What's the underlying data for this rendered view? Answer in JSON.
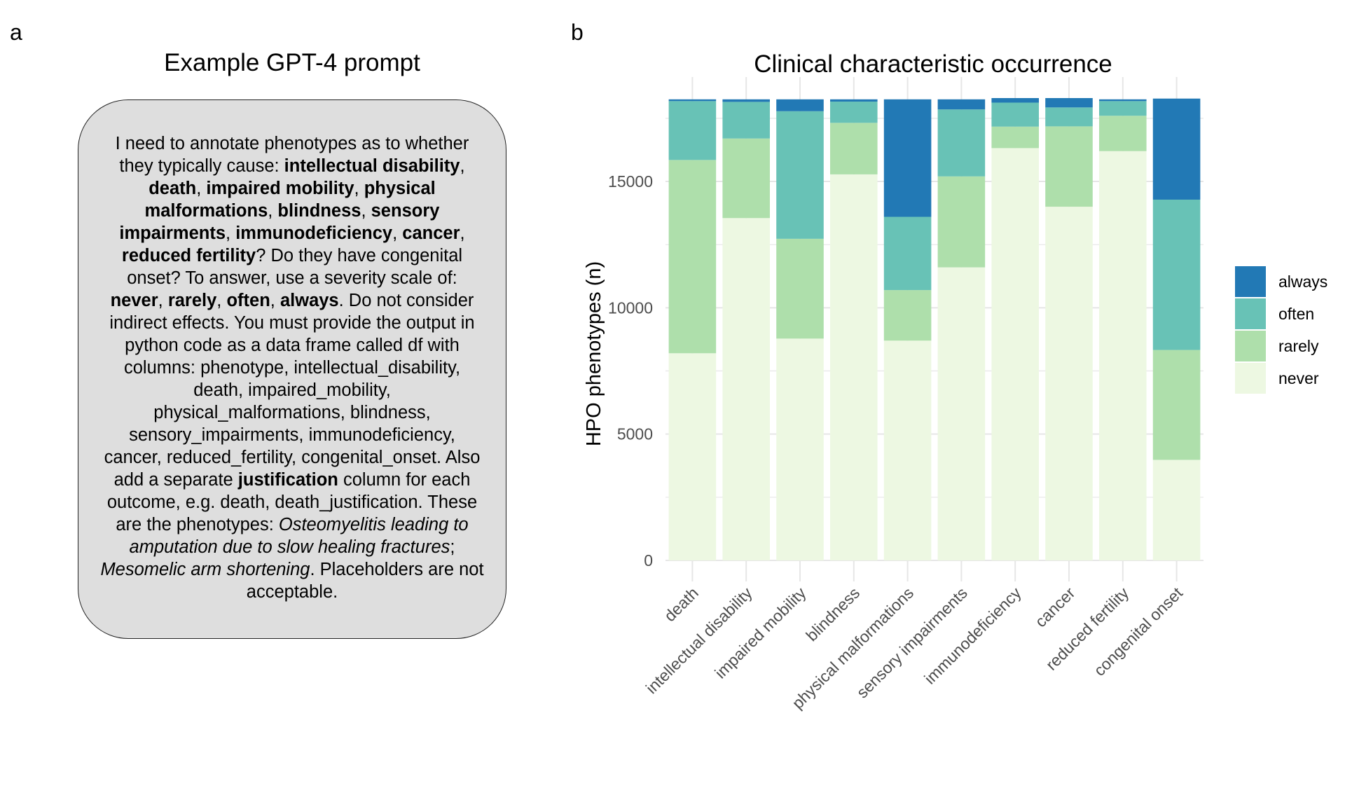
{
  "panel_a": {
    "letter": "a",
    "title": "Example GPT-4 prompt",
    "prompt_segments": [
      {
        "t": "I need to annotate phenotypes as to whether they typically cause: ",
        "s": ""
      },
      {
        "t": "intellectual disability",
        "s": "b"
      },
      {
        "t": ", ",
        "s": ""
      },
      {
        "t": "death",
        "s": "b"
      },
      {
        "t": ", ",
        "s": ""
      },
      {
        "t": "impaired mobility",
        "s": "b"
      },
      {
        "t": ", ",
        "s": ""
      },
      {
        "t": "physical malformations",
        "s": "b"
      },
      {
        "t": ", ",
        "s": ""
      },
      {
        "t": "blindness",
        "s": "b"
      },
      {
        "t": ", ",
        "s": ""
      },
      {
        "t": "sensory impairments",
        "s": "b"
      },
      {
        "t": ", ",
        "s": ""
      },
      {
        "t": "immunodeficiency",
        "s": "b"
      },
      {
        "t": ", ",
        "s": ""
      },
      {
        "t": "cancer",
        "s": "b"
      },
      {
        "t": ", ",
        "s": ""
      },
      {
        "t": "reduced fertility",
        "s": "b"
      },
      {
        "t": "? Do they have congenital onset? To answer, use a severity scale of: ",
        "s": ""
      },
      {
        "t": "never",
        "s": "b"
      },
      {
        "t": ", ",
        "s": ""
      },
      {
        "t": "rarely",
        "s": "b"
      },
      {
        "t": ", ",
        "s": ""
      },
      {
        "t": "often",
        "s": "b"
      },
      {
        "t": ", ",
        "s": ""
      },
      {
        "t": "always",
        "s": "b"
      },
      {
        "t": ". Do not consider indirect effects. You must provide the output in python code as a data frame called df with columns: phenotype, intellectual_disability, death, impaired_mobility, physical_malformations, blindness, sensory_impairments, immunodeficiency, cancer, reduced_fertility, congenital_onset. Also add a separate ",
        "s": ""
      },
      {
        "t": "justification",
        "s": "b"
      },
      {
        "t": " column for each outcome, e.g. death, death_justification. These are the phenotypes: ",
        "s": ""
      },
      {
        "t": "Osteomyelitis leading to amputation due to slow healing fractures",
        "s": "i"
      },
      {
        "t": "; ",
        "s": ""
      },
      {
        "t": "Mesomelic arm shortening",
        "s": "i"
      },
      {
        "t": ". Placeholders are not acceptable.",
        "s": ""
      }
    ]
  },
  "panel_b": {
    "letter": "b"
  },
  "chart_data": {
    "type": "bar",
    "stacked": true,
    "title": "Clinical characteristic occurrence",
    "xlabel": "",
    "ylabel": "HPO phenotypes (n)",
    "ylim": [
      0,
      18300
    ],
    "yticks": [
      0,
      5000,
      10000,
      15000
    ],
    "ytick_labels": [
      "0",
      "5000",
      "10000",
      "15000"
    ],
    "grid": true,
    "legend_position": "right",
    "categories": [
      "death",
      "intellectual disability",
      "impaired mobility",
      "blindness",
      "physical malformations",
      "sensory impairments",
      "immunodeficiency",
      "cancer",
      "reduced fertility",
      "congenital onset"
    ],
    "series": [
      {
        "name": "never",
        "color": "#edf8e2",
        "values": [
          8200,
          13550,
          8780,
          15280,
          8700,
          11600,
          16320,
          14000,
          16200,
          3980
        ]
      },
      {
        "name": "rarely",
        "color": "#aedfab",
        "values": [
          7650,
          3150,
          3950,
          2040,
          2000,
          3600,
          850,
          3180,
          1400,
          4350
        ]
      },
      {
        "name": "often",
        "color": "#68c2b6",
        "values": [
          2330,
          1450,
          5050,
          840,
          2900,
          2650,
          950,
          750,
          580,
          5950
        ]
      },
      {
        "name": "always",
        "color": "#2279b5",
        "values": [
          70,
          100,
          470,
          90,
          4650,
          400,
          180,
          370,
          70,
          4000
        ]
      }
    ]
  }
}
